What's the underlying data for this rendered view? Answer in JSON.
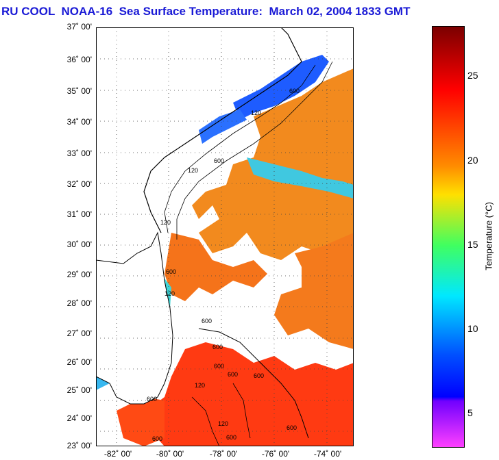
{
  "title": "RU COOL  NOAA-16  Sea Surface Temperature:  March 02, 2004 1833 GMT",
  "map": {
    "lat_labels": [
      "37˚ 00'",
      "36˚ 00'",
      "35˚ 00'",
      "34˚ 00'",
      "33˚ 00'",
      "32˚ 00'",
      "31˚ 00'",
      "30˚ 00'",
      "29˚ 00'",
      "28˚ 00'",
      "27˚ 00'",
      "26˚ 00'",
      "25˚ 00'",
      "24˚ 00'",
      "23˚ 00'"
    ],
    "lon_labels": [
      "-82˚ 00'",
      "-80˚ 00'",
      "-78˚ 00'",
      "-76˚ 00'",
      "-74˚ 00'"
    ],
    "isobath_labels": [
      "600",
      "120",
      "120",
      "600",
      "120",
      "600",
      "600",
      "120",
      "600",
      "600",
      "600",
      "600",
      "120",
      "600",
      "600",
      "120",
      "600",
      "600"
    ],
    "colors": {
      "warm": "#f07a1c",
      "hot": "#ff3010",
      "land": "#ffffff",
      "coastal_cold": "#1e62ff",
      "cool": "#38d0e0"
    }
  },
  "colorbar": {
    "title": "Temperature (°C)",
    "ticks": [
      "25",
      "20",
      "15",
      "10",
      "5"
    ],
    "colors": [
      "#7a0000",
      "#ff0000",
      "#ff8a00",
      "#ffff00",
      "#00ff80",
      "#00ffff",
      "#0070ff",
      "#0000ff",
      "#8000ff",
      "#ff40ff"
    ]
  }
}
